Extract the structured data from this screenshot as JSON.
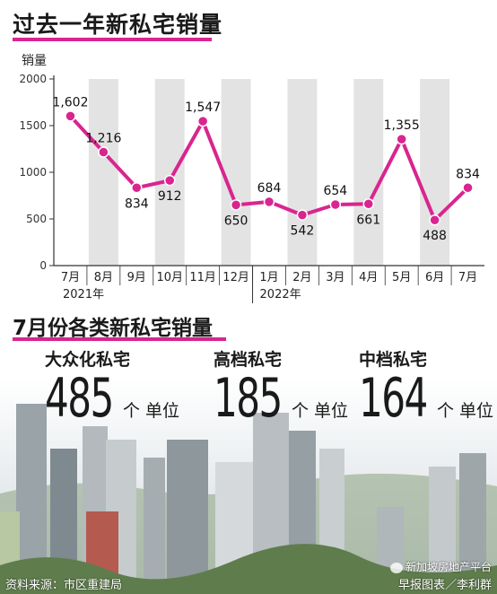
{
  "title": "过去一年新私宅销量",
  "accent": "#d9258f",
  "chart_data": {
    "type": "line",
    "ylabel": "销量",
    "ylim": [
      0,
      2000
    ],
    "yticks": [
      0,
      500,
      1000,
      1500,
      2000
    ],
    "categories": [
      "7月",
      "8月",
      "9月",
      "10月",
      "11月",
      "12月",
      "1月",
      "2月",
      "3月",
      "4月",
      "5月",
      "6月",
      "7月"
    ],
    "year_labels": [
      "2021年",
      "2022年"
    ],
    "series": [
      {
        "values": [
          1602,
          1216,
          834,
          912,
          1547,
          650,
          684,
          542,
          654,
          661,
          1355,
          488,
          834
        ]
      }
    ],
    "data_labels": [
      "1,602",
      "1,216",
      "834",
      "912",
      "1,547",
      "650",
      "684",
      "542",
      "654",
      "661",
      "1,355",
      "488",
      "834"
    ],
    "color": "#d9258f",
    "band_color": "#e3e3e3"
  },
  "section2": {
    "title": "7月份各类新私宅销量",
    "categories": [
      {
        "name": "大众化私宅",
        "value": "485",
        "unit": "个 单位"
      },
      {
        "name": "高档私宅",
        "value": "185",
        "unit": "个 单位"
      },
      {
        "name": "中档私宅",
        "value": "164",
        "unit": "个 单位"
      }
    ]
  },
  "footer": {
    "source": "资料来源：市区重建局",
    "credit": "早报图表／李利群",
    "watermark": "新加坡房地产平台"
  }
}
